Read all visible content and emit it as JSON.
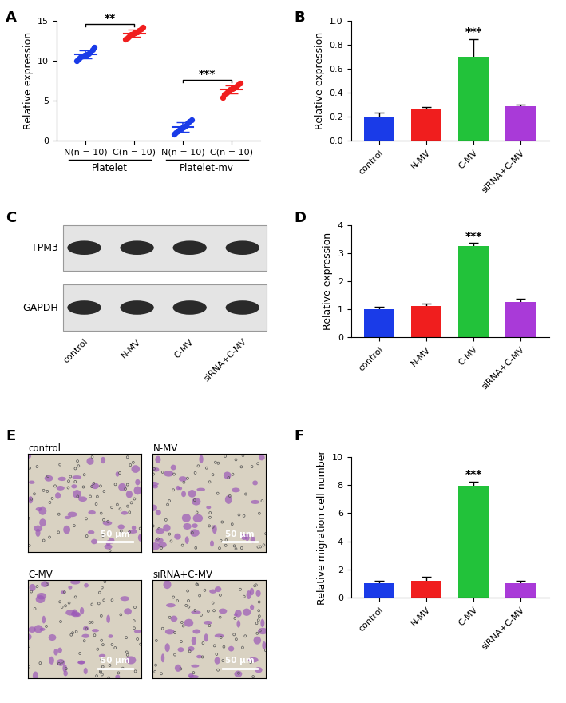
{
  "chart_data": [
    {
      "panel": "A",
      "type": "strip",
      "y_label": "Relative expression",
      "categories": [
        "N(n = 10)",
        "C(n = 10)",
        "N(n = 10)",
        "C(n = 10)"
      ],
      "groups": [
        {
          "name": "Platelet",
          "span": [
            0,
            1
          ]
        },
        {
          "name": "Platelet-mv",
          "span": [
            2,
            3
          ]
        }
      ],
      "values": [
        [
          10.0,
          10.3,
          10.5,
          10.6,
          10.7,
          10.8,
          10.9,
          11.1,
          11.4,
          11.7
        ],
        [
          12.7,
          12.9,
          13.1,
          13.3,
          13.4,
          13.5,
          13.6,
          13.8,
          14.0,
          14.2
        ],
        [
          0.8,
          1.0,
          1.2,
          1.4,
          1.6,
          1.7,
          1.9,
          2.2,
          2.4,
          2.6
        ],
        [
          5.4,
          5.8,
          6.0,
          6.2,
          6.4,
          6.5,
          6.6,
          6.8,
          7.0,
          7.2
        ]
      ],
      "means": [
        10.8,
        13.45,
        1.7,
        6.4
      ],
      "errors": [
        0.5,
        0.45,
        0.6,
        0.5
      ],
      "colors": [
        "#1a3be8",
        "#f01e1e",
        "#1a3be8",
        "#f01e1e"
      ],
      "marker": "o",
      "annotations": [
        {
          "between": [
            0,
            1
          ],
          "text": "**"
        },
        {
          "between": [
            2,
            3
          ],
          "text": "***"
        }
      ],
      "ylim": [
        0,
        15
      ],
      "yticks": [
        0,
        5,
        10,
        15
      ]
    },
    {
      "panel": "B",
      "type": "bar",
      "y_label": "Relative expression",
      "categories": [
        "control",
        "N-MV",
        "C-MV",
        "siRNA+C-MV"
      ],
      "values": [
        0.2,
        0.27,
        0.7,
        0.29
      ],
      "errors": [
        0.035,
        0.01,
        0.15,
        0.01
      ],
      "colors": [
        "#1a3be8",
        "#f01e1e",
        "#22c23a",
        "#a93ad8"
      ],
      "annotations": [
        {
          "category": "C-MV",
          "text": "***"
        }
      ],
      "ylim": [
        0,
        1.0
      ],
      "yticks": [
        {
          "value": 0,
          "label": "0.0"
        },
        0.2,
        0.4,
        0.6,
        0.8,
        {
          "value": 1,
          "label": "1.0"
        }
      ]
    },
    {
      "panel": "D",
      "type": "bar",
      "y_label": "Relative expression",
      "categories": [
        "control",
        "N-MV",
        "C-MV",
        "siRNA+C-MV"
      ],
      "values": [
        1.0,
        1.12,
        3.25,
        1.25
      ],
      "errors": [
        0.1,
        0.08,
        0.1,
        0.12
      ],
      "colors": [
        "#1a3be8",
        "#f01e1e",
        "#22c23a",
        "#a93ad8"
      ],
      "annotations": [
        {
          "category": "C-MV",
          "text": "***"
        }
      ],
      "ylim": [
        0,
        4
      ],
      "yticks": [
        0,
        1,
        2,
        3,
        4
      ]
    },
    {
      "panel": "F",
      "type": "bar",
      "y_label": "Relative migration cell number",
      "categories": [
        "control",
        "N-MV",
        "C-MV",
        "siRNA+C-MV"
      ],
      "values": [
        1.0,
        1.2,
        7.95,
        1.0
      ],
      "errors": [
        0.2,
        0.25,
        0.3,
        0.18
      ],
      "colors": [
        "#1a3be8",
        "#f01e1e",
        "#22c23a",
        "#a93ad8"
      ],
      "annotations": [
        {
          "category": "C-MV",
          "text": "***"
        }
      ],
      "ylim": [
        0,
        10
      ],
      "yticks": [
        0,
        2,
        4,
        6,
        8,
        10
      ]
    }
  ],
  "blot": {
    "panel": "C",
    "bands": [
      "TPM3",
      "GAPDH"
    ],
    "lanes": [
      "control",
      "N-MV",
      "C-MV",
      "siRNA+C-MV"
    ]
  },
  "micrographs": {
    "panel": "E",
    "images": [
      "control",
      "N-MV",
      "C-MV",
      "siRNA+C-MV"
    ],
    "scale_bar": "50 μm"
  }
}
